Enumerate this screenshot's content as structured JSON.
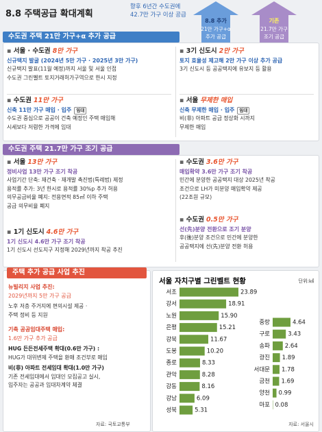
{
  "header": {
    "title": "8.8 주택공급 확대계획",
    "subtitle": [
      "향후 6년간 수도권에",
      "42.7만 가구 이상 공급"
    ],
    "arrows": [
      {
        "label": "8.8 추가",
        "text": [
          "21만 가구+α",
          "추가 공급"
        ]
      },
      {
        "label": "기존",
        "text": [
          "21.7만 가구",
          "조기 공급"
        ]
      }
    ]
  },
  "sections": [
    {
      "title": "수도권 주택 21만 가구+α 추가 공급",
      "boxes": [
        {
          "region": "서울 · 수도권",
          "amount": "8만 가구",
          "highlight": "신규택지 발굴 (2024년 5만 가구 · 2025년 3만 가구)",
          "lines": [
            "신규택지 발표(11월 예정)까지 서울 및 서울 인접",
            "수도권 그린벨트 토지거래허가구역으로 한시 지정"
          ]
        },
        {
          "region": "3기 신도시",
          "amount": "2만 가구",
          "highlight": "토지 효율성 제고해 2만 가구 이상 추가 공급",
          "lines": [
            "3기 신도시 등 공공택지에 유보지 등 활용"
          ]
        },
        {
          "region": "수도권",
          "amount": "11만 가구",
          "highlight": "신축 11만 가구 매입 · 입주",
          "badge": "임대",
          "lines": [
            "수도권 중심으로 공공이 건축 예정인 주택 매입해",
            "시세보다 저렴한 가격에 임대"
          ]
        },
        {
          "region": "서울",
          "amount": "무제한 매입",
          "highlight": "신축 무제한 매입 · 입주",
          "badge": "임대",
          "lines": [
            "비(非) 아파트 공급 정상화 시까지",
            "무제한 매입"
          ]
        }
      ]
    },
    {
      "title": "수도권 주택 21.7만 가구 조기 공급",
      "boxes": [
        {
          "region": "서울",
          "amount": "13만 가구",
          "highlight": "정비사업 13만 가구 조기 착공",
          "lines": [
            "사업기간 단축: 재건축 · 재개발 촉진법(특례법) 제정",
            "용적률 추가: 3년 한시로 용적률 30%p 추가 허용",
            "의무공급비율 폐지: 전용면적 85㎡ 이하 주택",
            "공급 의무비율 폐지"
          ]
        },
        {
          "region": "1기 신도시",
          "amount": "4.6만 가구",
          "highlight": "1기 신도시 4.6만 가구 조기 착공",
          "lines": [
            "1기 신도시 선도지구 지정해 2029년까지 착공 추진"
          ]
        },
        {
          "region": "수도권",
          "amount": "3.6만 가구",
          "highlight": "매입확약 3.6만 가구 조기 착공",
          "lines": [
            "민간에 분양한 공공택지 대상 2025년 착공",
            "조건으로 LH가 미분양 매입확약 제공",
            "(22조원 규모)"
          ]
        },
        {
          "region": "수도권",
          "amount": "0.5만 가구",
          "highlight": "선(先)분양 전환으로 조기 분양",
          "lines": [
            "후(後)분양 조건으로 민간에 분양한",
            "공공택지에 선(先)분양 전환 허용"
          ]
        }
      ]
    }
  ],
  "extra": {
    "title": "주택 추가 공급 사업 추진",
    "items": [
      {
        "heading": "뉴빌리지 사업 추진:",
        "highlight": "2029년까지 5만 가구 공급",
        "lines": [
          "노후 저층 주거지에 편의시설 제공 ·",
          "주택 정비 등 지원"
        ]
      },
      {
        "heading": "기축 공공임대주택 매입:",
        "highlight": "1.6만 가구 추가 공급",
        "subitems": [
          {
            "heading": "HUG 든든전세주택 확대(0.6만 가구) :",
            "lines": [
              "HUG가 대위변제 주택을 환매 조건부로 매입"
            ]
          },
          {
            "heading": "비(非) 아파트 전세임대 확대(1.0만 가구)",
            "lines": [
              "기존 전세임대에서 임대인 모집공고 실시,",
              "입주자는 공공과 임대차계약 체결"
            ]
          }
        ]
      }
    ],
    "source": "자료: 국토교통부"
  },
  "chart_data": {
    "type": "bar",
    "orientation": "horizontal",
    "title": "서울 자치구별 그린벨트 현황",
    "unit": "단위:㎢",
    "categories": [
      "서초",
      "강서",
      "노원",
      "은평",
      "강북",
      "도봉",
      "종로",
      "관악",
      "강동",
      "강남",
      "성북",
      "중랑",
      "구로",
      "송파",
      "광진",
      "서대문",
      "금천",
      "양천",
      "마포"
    ],
    "values": [
      23.89,
      18.91,
      15.9,
      15.21,
      11.67,
      10.2,
      8.33,
      8.28,
      8.16,
      6.09,
      5.31,
      4.64,
      3.43,
      2.64,
      1.89,
      1.78,
      1.69,
      0.99,
      0.08
    ],
    "value_labels": [
      "23.89",
      "18.91",
      "15.90",
      "15.21",
      "11.67",
      "10.20",
      "8.33",
      "8.28",
      "8.16",
      "6.09",
      "5.31",
      "4.64",
      "3.43",
      "2.64",
      "1.89",
      "1.78",
      "1.69",
      "0.99",
      "0.08"
    ],
    "color": "#6f9e3f",
    "source": "자료: 서울시"
  }
}
